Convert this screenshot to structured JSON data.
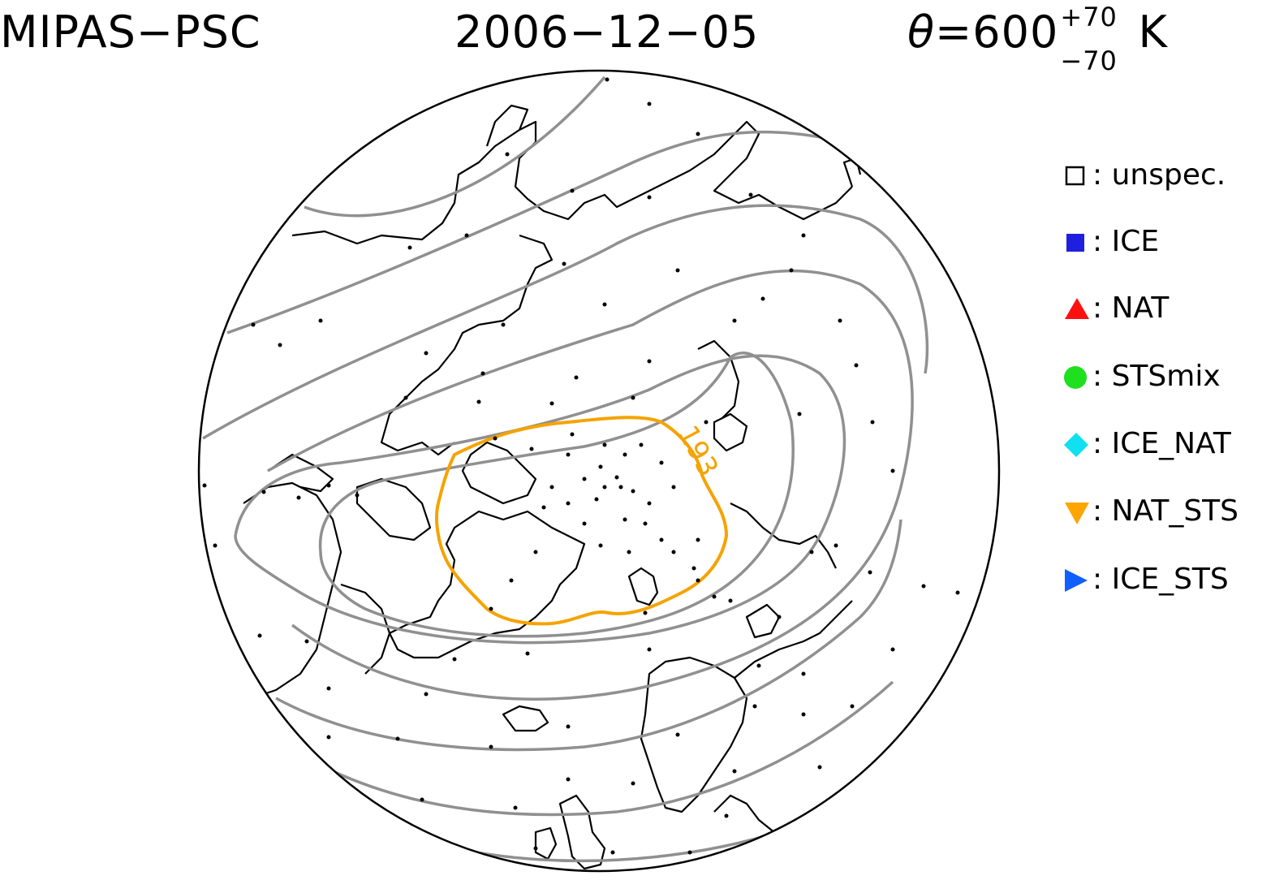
{
  "header": {
    "instrument": "MIPAS−PSC",
    "date": "2006−12−05",
    "theta_symbol": "θ",
    "theta_value": "=600",
    "theta_upper": "+70",
    "theta_lower": "−70",
    "theta_unit": "K"
  },
  "legend": {
    "items": [
      {
        "symbol": "open-square-icon",
        "label": "unspec.",
        "color": "#000000"
      },
      {
        "symbol": "filled-square-icon",
        "label": "ICE",
        "color": "#1f1fe0"
      },
      {
        "symbol": "triangle-up-icon",
        "label": "NAT",
        "color": "#ff1010"
      },
      {
        "symbol": "circle-icon",
        "label": "STSmix",
        "color": "#1ee01e"
      },
      {
        "symbol": "diamond-icon",
        "label": "ICE_NAT",
        "color": "#10e0f0"
      },
      {
        "symbol": "triangle-down-icon",
        "label": "NAT_STS",
        "color": "#ffa500"
      },
      {
        "symbol": "triangle-right-icon",
        "label": "ICE_STS",
        "color": "#1060ff"
      }
    ]
  },
  "map": {
    "projection": "north-polar-stereographic",
    "temperature_contour_label": "193",
    "temperature_contour_color": "#f5a300",
    "geopotential_contour_color": "#909090",
    "coastline_color": "#000000"
  }
}
